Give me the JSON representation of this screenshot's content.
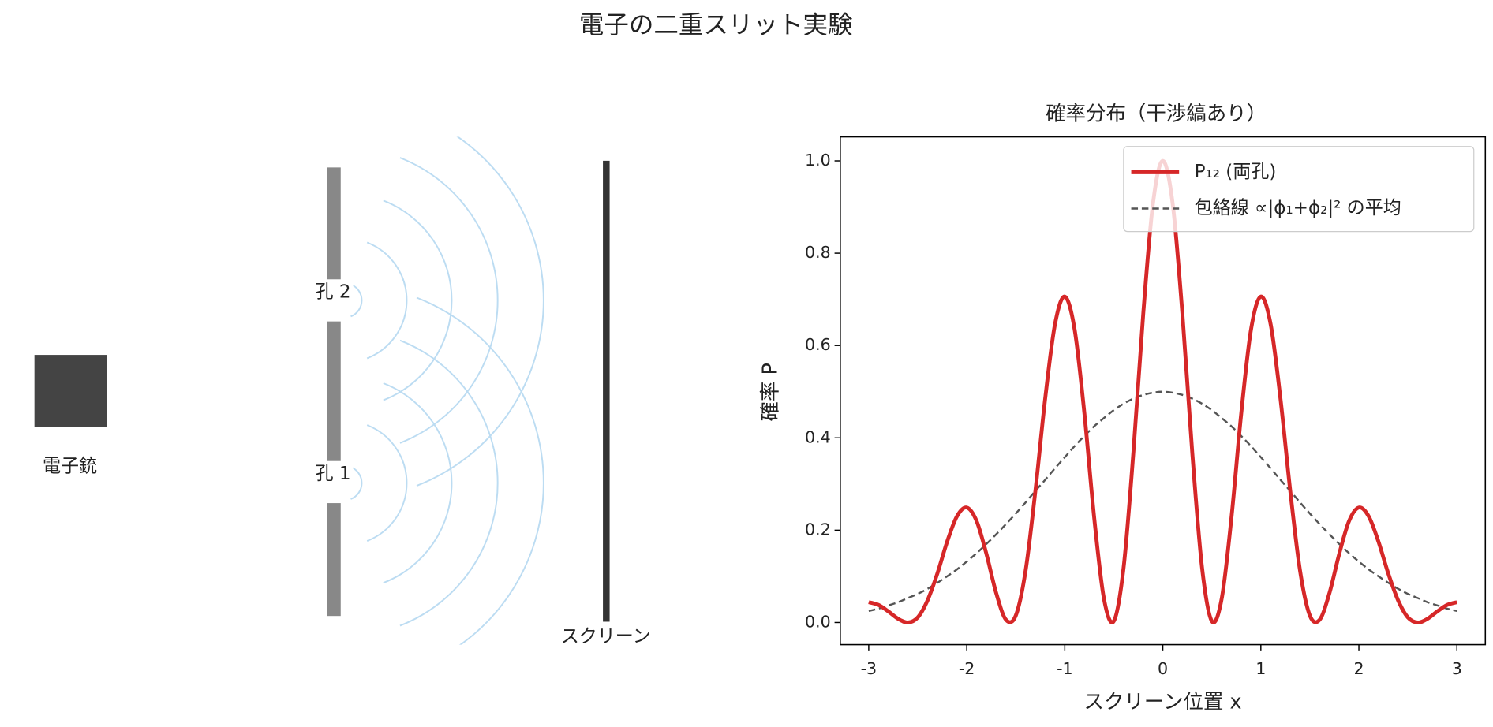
{
  "title": "電子の二重スリット実験",
  "diagram": {
    "gun_label": "電子銃",
    "slit2_label": "孔 2",
    "slit1_label": "孔 1",
    "screen_label": "スクリーン"
  },
  "chart_data": {
    "type": "line",
    "title": "確率分布（干渉縞あり）",
    "x_label": "スクリーン位置 x",
    "y_label": "確率 P",
    "x": [
      -3,
      -2.9,
      -2.8,
      -2.7,
      -2.6,
      -2.5,
      -2.4,
      -2.3,
      -2.2,
      -2.1,
      -2,
      -1.9,
      -1.8,
      -1.7,
      -1.6,
      -1.5,
      -1.4,
      -1.3,
      -1.2,
      -1.1,
      -1,
      -0.9,
      -0.8,
      -0.7,
      -0.6,
      -0.5,
      -0.4,
      -0.3,
      -0.2,
      -0.1,
      0,
      0.1,
      0.2,
      0.3,
      0.4,
      0.5,
      0.6,
      0.7,
      0.8,
      0.9,
      1,
      1.1,
      1.2,
      1.3,
      1.4,
      1.5,
      1.6,
      1.7,
      1.8,
      1.9,
      2,
      2.1,
      2.2,
      2.3,
      2.4,
      2.5,
      2.6,
      2.7,
      2.8,
      2.9,
      3
    ],
    "series": [
      {
        "name": "P₁₂ (両孔)",
        "color": "#d62728",
        "linestyle": "solid",
        "values": [
          0.044,
          0.038,
          0.024,
          0.008,
          0.0,
          0.011,
          0.048,
          0.106,
          0.175,
          0.23,
          0.249,
          0.22,
          0.149,
          0.064,
          0.006,
          0.015,
          0.112,
          0.285,
          0.485,
          0.646,
          0.706,
          0.635,
          0.453,
          0.227,
          0.051,
          0.003,
          0.119,
          0.369,
          0.668,
          0.908,
          1.0,
          0.908,
          0.668,
          0.369,
          0.119,
          0.003,
          0.051,
          0.227,
          0.453,
          0.635,
          0.706,
          0.646,
          0.485,
          0.285,
          0.112,
          0.015,
          0.006,
          0.064,
          0.149,
          0.22,
          0.249,
          0.23,
          0.175,
          0.106,
          0.048,
          0.011,
          0.0,
          0.008,
          0.024,
          0.038,
          0.044
        ]
      },
      {
        "name": "包絡線 ∝|ϕ₁+ϕ₂|² の平均",
        "color": "#555555",
        "linestyle": "dashed",
        "values": [
          0.025,
          0.03,
          0.037,
          0.044,
          0.053,
          0.062,
          0.073,
          0.086,
          0.1,
          0.115,
          0.132,
          0.15,
          0.17,
          0.191,
          0.213,
          0.236,
          0.26,
          0.285,
          0.309,
          0.334,
          0.358,
          0.382,
          0.404,
          0.425,
          0.443,
          0.46,
          0.474,
          0.485,
          0.493,
          0.498,
          0.5,
          0.498,
          0.493,
          0.485,
          0.474,
          0.46,
          0.443,
          0.425,
          0.404,
          0.382,
          0.358,
          0.334,
          0.309,
          0.285,
          0.26,
          0.236,
          0.213,
          0.191,
          0.17,
          0.15,
          0.132,
          0.115,
          0.1,
          0.086,
          0.073,
          0.062,
          0.053,
          0.044,
          0.037,
          0.03,
          0.025
        ]
      }
    ],
    "xlim": [
      -3.29,
      3.29
    ],
    "ylim": [
      -0.048,
      1.052
    ],
    "xticks": [
      -3,
      -2,
      -1,
      0,
      1,
      2,
      3
    ],
    "yticks": [
      {
        "value": 0,
        "label": "0.0"
      },
      {
        "value": 0.2,
        "label": "0.2"
      },
      {
        "value": 0.4,
        "label": "0.4"
      },
      {
        "value": 0.6,
        "label": "0.6"
      },
      {
        "value": 0.8,
        "label": "0.8"
      },
      {
        "value": 1,
        "label": "1.0"
      }
    ],
    "grid": false,
    "legend": "upper right"
  }
}
